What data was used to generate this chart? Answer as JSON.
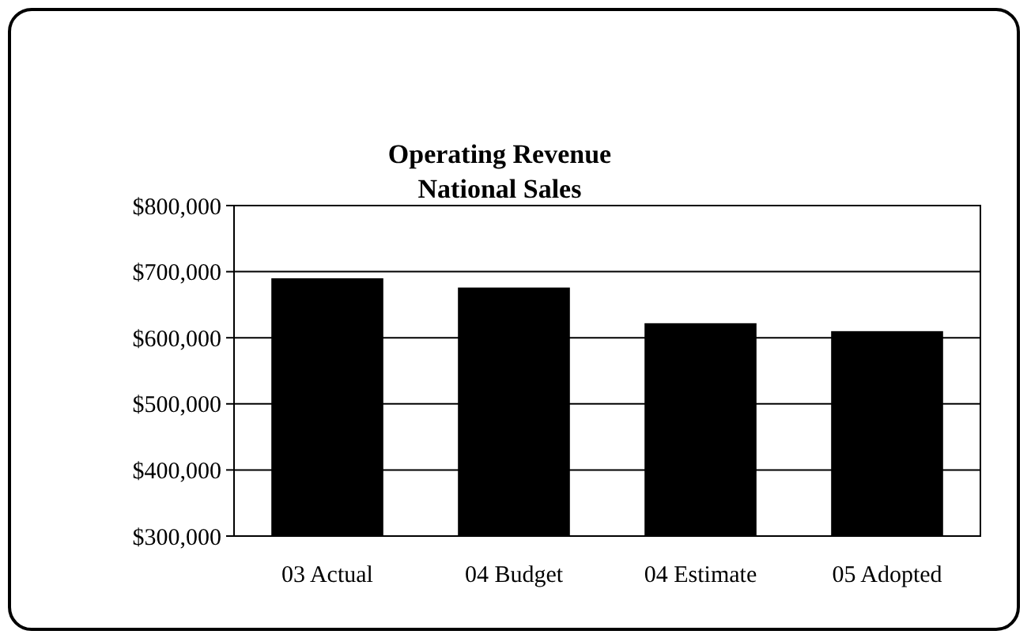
{
  "chart_data": {
    "type": "bar",
    "title": "Operating Revenue",
    "subtitle": "National Sales",
    "categories": [
      "03 Actual",
      "04 Budget",
      "04 Estimate",
      "05 Adopted"
    ],
    "values": [
      690000,
      676000,
      622000,
      610000
    ],
    "color": "#000000",
    "ylim": [
      300000,
      800000
    ],
    "yticks": [
      {
        "value": 300000,
        "label": "$300,000"
      },
      {
        "value": 400000,
        "label": "$400,000"
      },
      {
        "value": 500000,
        "label": "$500,000"
      },
      {
        "value": 600000,
        "label": "$600,000"
      },
      {
        "value": 700000,
        "label": "$700,000"
      },
      {
        "value": 800000,
        "label": "$800,000"
      }
    ],
    "grid": "y"
  }
}
